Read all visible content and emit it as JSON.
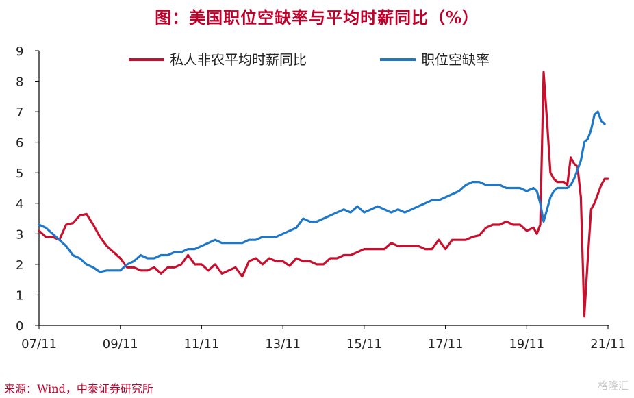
{
  "title": "图：美国职位空缺率与平均时薪同比（%）",
  "source": "来源：Wind，中泰证券研究所",
  "watermark": "格隆汇",
  "colors": {
    "wage": "#c8102e",
    "vacancy": "#1f77c8",
    "axis": "#000000",
    "title": "#c0002a"
  },
  "chart_data": {
    "type": "line",
    "xlabel": "",
    "ylabel": "",
    "ylim": [
      0,
      9
    ],
    "xlim": [
      "2007-11",
      "2021-11"
    ],
    "grid": false,
    "legend_position": "top",
    "x_ticks": [
      "07/11",
      "09/11",
      "11/11",
      "13/11",
      "15/11",
      "17/11",
      "19/11",
      "21/11"
    ],
    "y_ticks": [
      "0",
      "1",
      "2",
      "3",
      "4",
      "5",
      "6",
      "7",
      "8",
      "9"
    ],
    "series": [
      {
        "name": "私人非农平均时薪同比",
        "color": "#c8102e",
        "points": [
          [
            "2007-11",
            3.1
          ],
          [
            "2008-01",
            2.9
          ],
          [
            "2008-03",
            2.9
          ],
          [
            "2008-05",
            2.8
          ],
          [
            "2008-07",
            3.3
          ],
          [
            "2008-09",
            3.35
          ],
          [
            "2008-11",
            3.6
          ],
          [
            "2009-01",
            3.65
          ],
          [
            "2009-03",
            3.3
          ],
          [
            "2009-05",
            2.9
          ],
          [
            "2009-07",
            2.6
          ],
          [
            "2009-09",
            2.4
          ],
          [
            "2009-11",
            2.2
          ],
          [
            "2010-01",
            1.9
          ],
          [
            "2010-03",
            1.9
          ],
          [
            "2010-05",
            1.8
          ],
          [
            "2010-07",
            1.8
          ],
          [
            "2010-09",
            1.9
          ],
          [
            "2010-11",
            1.7
          ],
          [
            "2011-01",
            1.9
          ],
          [
            "2011-03",
            1.9
          ],
          [
            "2011-05",
            2.0
          ],
          [
            "2011-07",
            2.3
          ],
          [
            "2011-09",
            2.0
          ],
          [
            "2011-11",
            2.0
          ],
          [
            "2012-01",
            1.8
          ],
          [
            "2012-03",
            2.0
          ],
          [
            "2012-05",
            1.7
          ],
          [
            "2012-07",
            1.8
          ],
          [
            "2012-09",
            1.9
          ],
          [
            "2012-11",
            1.6
          ],
          [
            "2013-01",
            2.1
          ],
          [
            "2013-03",
            2.2
          ],
          [
            "2013-05",
            2.0
          ],
          [
            "2013-07",
            2.2
          ],
          [
            "2013-09",
            2.1
          ],
          [
            "2013-11",
            2.1
          ],
          [
            "2014-01",
            1.95
          ],
          [
            "2014-03",
            2.2
          ],
          [
            "2014-05",
            2.1
          ],
          [
            "2014-07",
            2.1
          ],
          [
            "2014-09",
            2.0
          ],
          [
            "2014-11",
            2.0
          ],
          [
            "2015-01",
            2.2
          ],
          [
            "2015-03",
            2.2
          ],
          [
            "2015-05",
            2.3
          ],
          [
            "2015-07",
            2.3
          ],
          [
            "2015-09",
            2.4
          ],
          [
            "2015-11",
            2.5
          ],
          [
            "2016-01",
            2.5
          ],
          [
            "2016-03",
            2.5
          ],
          [
            "2016-05",
            2.5
          ],
          [
            "2016-07",
            2.7
          ],
          [
            "2016-09",
            2.6
          ],
          [
            "2016-11",
            2.6
          ],
          [
            "2017-01",
            2.6
          ],
          [
            "2017-03",
            2.6
          ],
          [
            "2017-05",
            2.5
          ],
          [
            "2017-07",
            2.5
          ],
          [
            "2017-09",
            2.8
          ],
          [
            "2017-11",
            2.5
          ],
          [
            "2018-01",
            2.8
          ],
          [
            "2018-03",
            2.8
          ],
          [
            "2018-05",
            2.8
          ],
          [
            "2018-07",
            2.9
          ],
          [
            "2018-09",
            2.95
          ],
          [
            "2018-11",
            3.2
          ],
          [
            "2019-01",
            3.3
          ],
          [
            "2019-03",
            3.3
          ],
          [
            "2019-05",
            3.4
          ],
          [
            "2019-07",
            3.3
          ],
          [
            "2019-09",
            3.3
          ],
          [
            "2019-11",
            3.1
          ],
          [
            "2020-01",
            3.2
          ],
          [
            "2020-02",
            3.0
          ],
          [
            "2020-03",
            3.3
          ],
          [
            "2020-04",
            8.3
          ],
          [
            "2020-05",
            6.7
          ],
          [
            "2020-06",
            5.0
          ],
          [
            "2020-07",
            4.8
          ],
          [
            "2020-08",
            4.7
          ],
          [
            "2020-09",
            4.7
          ],
          [
            "2020-10",
            4.7
          ],
          [
            "2020-11",
            4.6
          ],
          [
            "2020-12",
            5.5
          ],
          [
            "2021-01",
            5.3
          ],
          [
            "2021-02",
            5.2
          ],
          [
            "2021-03",
            4.2
          ],
          [
            "2021-04",
            0.3
          ],
          [
            "2021-05",
            2.1
          ],
          [
            "2021-06",
            3.8
          ],
          [
            "2021-07",
            4.0
          ],
          [
            "2021-08",
            4.3
          ],
          [
            "2021-09",
            4.6
          ],
          [
            "2021-10",
            4.8
          ],
          [
            "2021-11",
            4.8
          ]
        ]
      },
      {
        "name": "职位空缺率",
        "color": "#1f77c8",
        "points": [
          [
            "2007-11",
            3.3
          ],
          [
            "2008-01",
            3.2
          ],
          [
            "2008-03",
            3.0
          ],
          [
            "2008-05",
            2.8
          ],
          [
            "2008-07",
            2.6
          ],
          [
            "2008-09",
            2.3
          ],
          [
            "2008-11",
            2.2
          ],
          [
            "2009-01",
            2.0
          ],
          [
            "2009-03",
            1.9
          ],
          [
            "2009-05",
            1.75
          ],
          [
            "2009-07",
            1.8
          ],
          [
            "2009-09",
            1.8
          ],
          [
            "2009-11",
            1.8
          ],
          [
            "2010-01",
            2.0
          ],
          [
            "2010-03",
            2.1
          ],
          [
            "2010-05",
            2.3
          ],
          [
            "2010-07",
            2.2
          ],
          [
            "2010-09",
            2.2
          ],
          [
            "2010-11",
            2.3
          ],
          [
            "2011-01",
            2.3
          ],
          [
            "2011-03",
            2.4
          ],
          [
            "2011-05",
            2.4
          ],
          [
            "2011-07",
            2.5
          ],
          [
            "2011-09",
            2.5
          ],
          [
            "2011-11",
            2.6
          ],
          [
            "2012-01",
            2.7
          ],
          [
            "2012-03",
            2.8
          ],
          [
            "2012-05",
            2.7
          ],
          [
            "2012-07",
            2.7
          ],
          [
            "2012-09",
            2.7
          ],
          [
            "2012-11",
            2.7
          ],
          [
            "2013-01",
            2.8
          ],
          [
            "2013-03",
            2.8
          ],
          [
            "2013-05",
            2.9
          ],
          [
            "2013-07",
            2.9
          ],
          [
            "2013-09",
            2.9
          ],
          [
            "2013-11",
            3.0
          ],
          [
            "2014-01",
            3.1
          ],
          [
            "2014-03",
            3.2
          ],
          [
            "2014-05",
            3.5
          ],
          [
            "2014-07",
            3.4
          ],
          [
            "2014-09",
            3.4
          ],
          [
            "2014-11",
            3.5
          ],
          [
            "2015-01",
            3.6
          ],
          [
            "2015-03",
            3.7
          ],
          [
            "2015-05",
            3.8
          ],
          [
            "2015-07",
            3.7
          ],
          [
            "2015-09",
            3.9
          ],
          [
            "2015-11",
            3.7
          ],
          [
            "2016-01",
            3.8
          ],
          [
            "2016-03",
            3.9
          ],
          [
            "2016-05",
            3.8
          ],
          [
            "2016-07",
            3.7
          ],
          [
            "2016-09",
            3.8
          ],
          [
            "2016-11",
            3.7
          ],
          [
            "2017-01",
            3.8
          ],
          [
            "2017-03",
            3.9
          ],
          [
            "2017-05",
            4.0
          ],
          [
            "2017-07",
            4.1
          ],
          [
            "2017-09",
            4.1
          ],
          [
            "2017-11",
            4.2
          ],
          [
            "2018-01",
            4.3
          ],
          [
            "2018-03",
            4.4
          ],
          [
            "2018-05",
            4.6
          ],
          [
            "2018-07",
            4.7
          ],
          [
            "2018-09",
            4.7
          ],
          [
            "2018-11",
            4.6
          ],
          [
            "2019-01",
            4.6
          ],
          [
            "2019-03",
            4.6
          ],
          [
            "2019-05",
            4.5
          ],
          [
            "2019-07",
            4.5
          ],
          [
            "2019-09",
            4.5
          ],
          [
            "2019-11",
            4.4
          ],
          [
            "2020-01",
            4.5
          ],
          [
            "2020-02",
            4.4
          ],
          [
            "2020-03",
            4.0
          ],
          [
            "2020-04",
            3.4
          ],
          [
            "2020-05",
            3.8
          ],
          [
            "2020-06",
            4.2
          ],
          [
            "2020-07",
            4.4
          ],
          [
            "2020-08",
            4.5
          ],
          [
            "2020-09",
            4.5
          ],
          [
            "2020-10",
            4.5
          ],
          [
            "2020-11",
            4.5
          ],
          [
            "2020-12",
            4.6
          ],
          [
            "2021-01",
            4.8
          ],
          [
            "2021-02",
            5.1
          ],
          [
            "2021-03",
            5.4
          ],
          [
            "2021-04",
            6.0
          ],
          [
            "2021-05",
            6.1
          ],
          [
            "2021-06",
            6.4
          ],
          [
            "2021-07",
            6.9
          ],
          [
            "2021-08",
            7.0
          ],
          [
            "2021-09",
            6.7
          ],
          [
            "2021-10",
            6.6
          ]
        ]
      }
    ]
  }
}
